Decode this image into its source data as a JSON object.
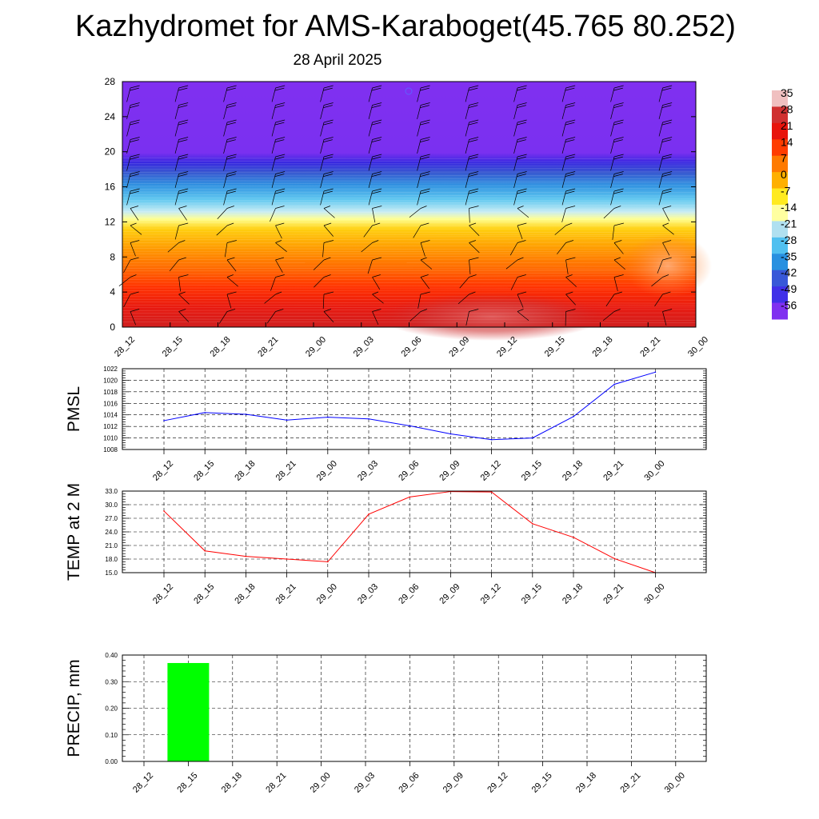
{
  "title": "Kazhydromet for AMS-Karaboget(45.765 80.252)",
  "subtitle": "28 April 2025",
  "chart_data": [
    {
      "type": "heatmap",
      "name": "",
      "x": [
        "28_12",
        "28_15",
        "28_18",
        "28_21",
        "29_00",
        "29_03",
        "29_06",
        "29_09",
        "29_12",
        "29_15",
        "29_18",
        "29_21",
        "30_00"
      ],
      "y_ticks": [
        "0",
        "4",
        "8",
        "12",
        "16",
        "20",
        "24",
        "28"
      ],
      "ylim": [
        0,
        28
      ],
      "temperature_by_height_c": [
        {
          "height": 0,
          "value": 25
        },
        {
          "height": 4,
          "value": 20
        },
        {
          "height": 8,
          "value": 8
        },
        {
          "height": 12,
          "value": -6
        },
        {
          "height": 14,
          "value": -20
        },
        {
          "height": 16,
          "value": -35
        },
        {
          "height": 18,
          "value": -52
        },
        {
          "height": 20,
          "value": -58
        },
        {
          "height": 28,
          "value": -60
        }
      ],
      "colorbar": {
        "labels": [
          "35",
          "28",
          "21",
          "14",
          "7",
          "0",
          "-7",
          "-14",
          "-21",
          "-28",
          "-35",
          "-42",
          "-49",
          "-56"
        ],
        "colors": [
          "#f0c0c0",
          "#d03030",
          "#e8140c",
          "#ff3c00",
          "#ff7a00",
          "#ffb000",
          "#ffea20",
          "#ffffa0",
          "#b0e0f0",
          "#50c0f0",
          "#2890e0",
          "#3858d8",
          "#4030e8",
          "#8030f0"
        ]
      },
      "grid": false,
      "wind_barbs": true
    },
    {
      "type": "line",
      "ylabel": "PMSL",
      "x": [
        "28_12",
        "28_15",
        "28_18",
        "28_21",
        "29_00",
        "29_03",
        "29_06",
        "29_09",
        "29_12",
        "29_15",
        "29_18",
        "29_21",
        "30_00"
      ],
      "values": [
        1013.0,
        1014.4,
        1014.1,
        1013.1,
        1013.6,
        1013.3,
        1012.1,
        1010.7,
        1009.7,
        1010.0,
        1013.7,
        1019.3,
        1021.4
      ],
      "y_ticks": [
        "1008",
        "1010",
        "1012",
        "1014",
        "1016",
        "1018",
        "1020",
        "1022"
      ],
      "ylim": [
        1008,
        1022
      ],
      "color": "#0000ff",
      "grid": true
    },
    {
      "type": "line",
      "ylabel": "TEMP at 2 M",
      "x": [
        "28_12",
        "28_15",
        "28_18",
        "28_21",
        "29_00",
        "29_03",
        "29_06",
        "29_09",
        "29_12",
        "29_15",
        "29_18",
        "29_21",
        "30_00"
      ],
      "values": [
        28.6,
        19.8,
        18.6,
        18.0,
        17.4,
        27.9,
        31.7,
        32.9,
        32.8,
        25.8,
        22.8,
        18.1,
        15.0
      ],
      "y_ticks": [
        "15.0",
        "18.0",
        "21.0",
        "24.0",
        "27.0",
        "30.0",
        "33.0"
      ],
      "ylim": [
        15,
        33
      ],
      "color": "#ff0000",
      "grid": true
    },
    {
      "type": "bar",
      "ylabel": "PRECIP, mm",
      "categories": [
        "28_12",
        "28_15",
        "28_18",
        "28_21",
        "29_00",
        "29_03",
        "29_06",
        "29_09",
        "29_12",
        "29_15",
        "29_18",
        "29_21",
        "30_00"
      ],
      "values": [
        0,
        0.37,
        0,
        0,
        0,
        0,
        0,
        0,
        0,
        0,
        0,
        0,
        0
      ],
      "y_ticks": [
        "0.00",
        "0.10",
        "0.20",
        "0.30",
        "0.40"
      ],
      "ylim": [
        0,
        0.4
      ],
      "color": "#00ff00",
      "grid": true
    }
  ]
}
